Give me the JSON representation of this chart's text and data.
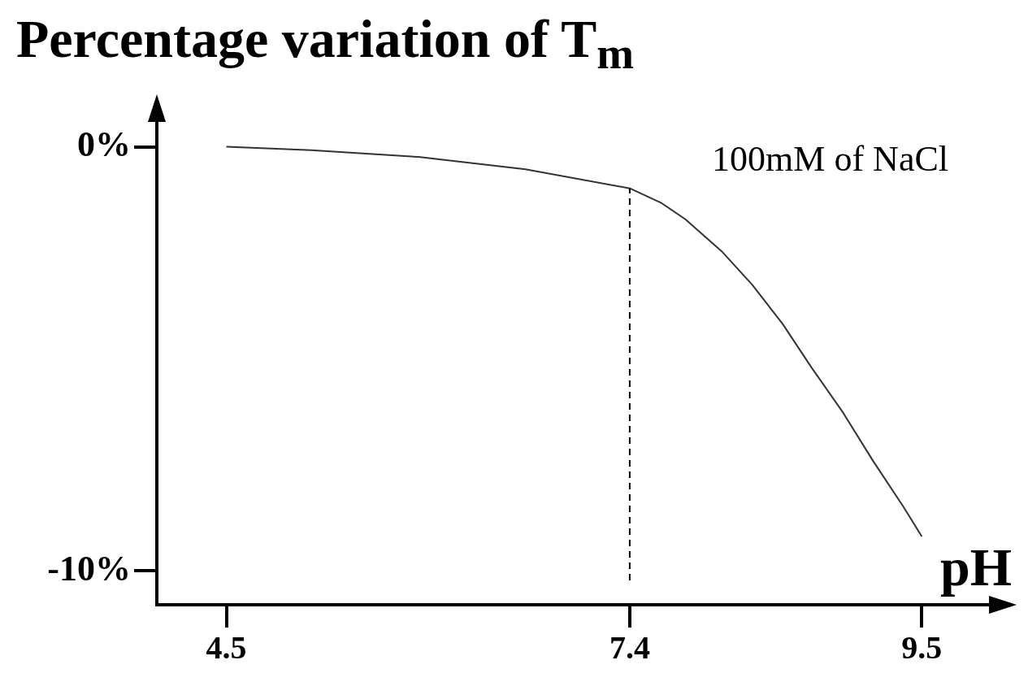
{
  "chart_data": {
    "type": "line",
    "title": "Percentage variation of T$_{m}$",
    "xlabel": "pH",
    "x": [
      4.5,
      5.11,
      5.88,
      6.65,
      7.4,
      7.63,
      7.8,
      8.06,
      8.28,
      8.5,
      8.71,
      8.93,
      9.15,
      9.37,
      9.5
    ],
    "series": [
      {
        "color": "#333333",
        "values": [
          0,
          -0.08,
          -0.24,
          -0.53,
          -0.98,
          -1.33,
          -1.71,
          -2.46,
          -3.25,
          -4.18,
          -5.22,
          -6.25,
          -7.41,
          -8.5,
          -9.19
        ]
      }
    ],
    "xlim": [
      4.0,
      10.1
    ],
    "xticks": [
      4.5,
      7.4,
      9.5
    ],
    "ylim": [
      -10.8,
      1
    ],
    "yticks": [
      {
        "value": 0,
        "label": "0%"
      },
      {
        "value": -10,
        "label": "-10%"
      }
    ],
    "ref_lines": [
      {
        "axis": "x",
        "value": 7.4,
        "line_style": "dashed",
        "color": "#000000"
      }
    ],
    "annotations": [
      "100mM of NaCl"
    ],
    "grid": false,
    "legend": false,
    "marker": "none",
    "line_style": "solid"
  }
}
